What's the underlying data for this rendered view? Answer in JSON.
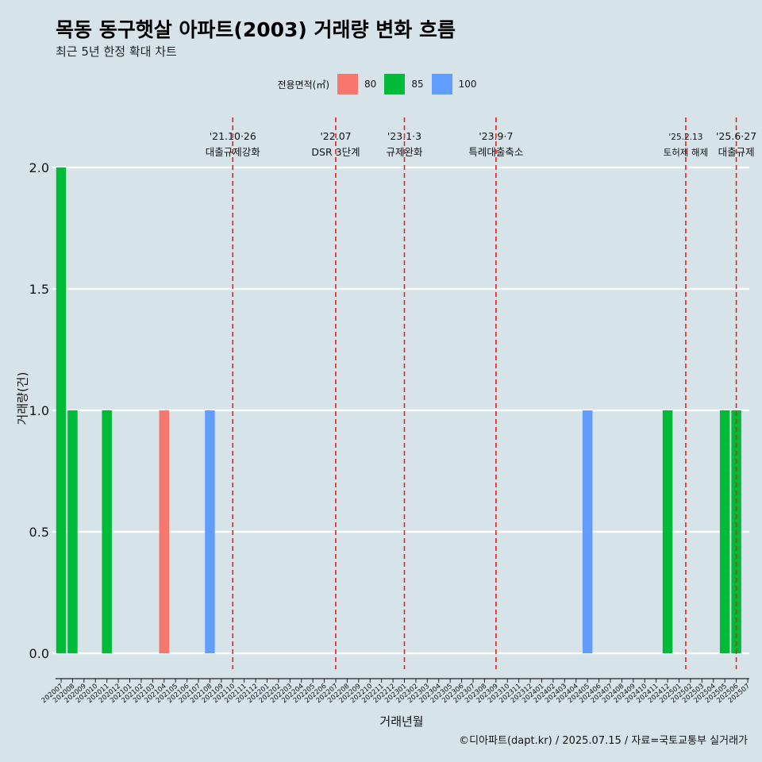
{
  "chart_data": {
    "type": "bar",
    "title": "목동 동구햇살 아파트(2003) 거래량 변화 흐름",
    "subtitle": "최근 5년 한정 확대 차트",
    "xlabel": "거래년월",
    "ylabel": "거래량(건)",
    "ylim": [
      0,
      2
    ],
    "yticks": [
      "0.0",
      "0.5",
      "1.0",
      "1.5",
      "2.0"
    ],
    "grid": true,
    "legend": {
      "title": "전용면적(㎡)",
      "placement": "top",
      "entries": [
        {
          "name": "80",
          "color": "#f8766d"
        },
        {
          "name": "85",
          "color": "#00ba38"
        },
        {
          "name": "100",
          "color": "#619cff"
        }
      ]
    },
    "categories": [
      "202007",
      "202008",
      "202009",
      "202010",
      "202011",
      "202012",
      "202101",
      "202102",
      "202103",
      "202104",
      "202105",
      "202106",
      "202107",
      "202108",
      "202109",
      "202110",
      "202111",
      "202112",
      "202201",
      "202202",
      "202203",
      "202204",
      "202205",
      "202206",
      "202207",
      "202208",
      "202209",
      "202210",
      "202211",
      "202212",
      "202301",
      "202302",
      "202303",
      "202304",
      "202305",
      "202306",
      "202307",
      "202308",
      "202309",
      "202310",
      "202311",
      "202312",
      "202401",
      "202402",
      "202403",
      "202404",
      "202405",
      "202406",
      "202407",
      "202408",
      "202409",
      "202410",
      "202411",
      "202412",
      "202501",
      "202502",
      "202503",
      "202504",
      "202505",
      "202506",
      "202507"
    ],
    "bars": [
      {
        "x": "202007",
        "area": "85",
        "value": 2
      },
      {
        "x": "202008",
        "area": "85",
        "value": 1
      },
      {
        "x": "202011",
        "area": "85",
        "value": 1
      },
      {
        "x": "202104",
        "area": "80",
        "value": 1
      },
      {
        "x": "202108",
        "area": "100",
        "value": 1
      },
      {
        "x": "202405",
        "area": "100",
        "value": 1
      },
      {
        "x": "202412",
        "area": "85",
        "value": 1
      },
      {
        "x": "202505",
        "area": "85",
        "value": 1
      },
      {
        "x": "202506",
        "area": "85",
        "value": 1
      }
    ],
    "annotations": [
      {
        "x": "202110",
        "line1": "'21.10·26",
        "line2": "대출규제강화"
      },
      {
        "x": "202207",
        "line1": "'22.07",
        "line2": "DSR 3단계"
      },
      {
        "x": "202301",
        "line1": "'23.1·3",
        "line2": "규제완화"
      },
      {
        "x": "202309",
        "line1": "'23.9·7",
        "line2": "특례대출축소"
      },
      {
        "x": "202502",
        "line1": "'25.2.13",
        "line2": "토허제 해제"
      },
      {
        "x": "202506",
        "line1": "'25.6·27",
        "line2": "대출규제"
      }
    ]
  },
  "caption": "©디아파트(dapt.kr) / 2025.07.15 / 자료=국토교통부 실거래가"
}
